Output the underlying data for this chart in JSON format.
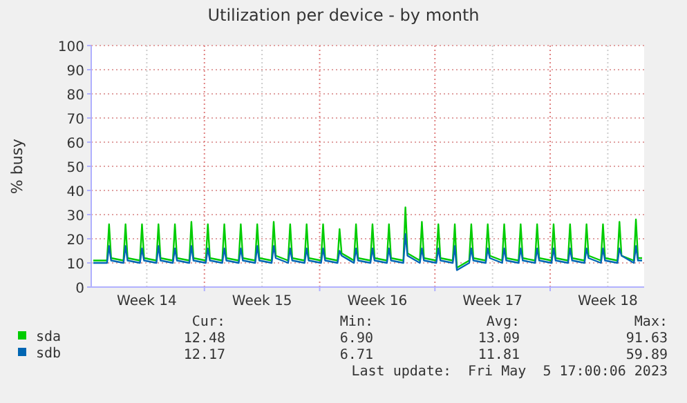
{
  "chart_data": {
    "type": "line",
    "title": "Utilization per device - by month",
    "ylabel": "% busy",
    "xlim": [
      "2023-04-03T03:00",
      "2023-05-06T17:00"
    ],
    "xticks": [
      {
        "value": "2023-04-06T12:00",
        "label": "Week 14"
      },
      {
        "value": "2023-04-10T00:00",
        "label": null
      },
      {
        "value": "2023-04-13T12:00",
        "label": "Week 15"
      },
      {
        "value": "2023-04-17T00:00",
        "label": null
      },
      {
        "value": "2023-04-20T12:00",
        "label": "Week 16"
      },
      {
        "value": "2023-04-24T00:00",
        "label": null
      },
      {
        "value": "2023-04-27T12:00",
        "label": "Week 17"
      },
      {
        "value": "2023-05-01T00:00",
        "label": null
      },
      {
        "value": "2023-05-04T12:00",
        "label": "Week 18"
      }
    ],
    "ylim": [
      0,
      100
    ],
    "yticks": [
      0,
      10,
      20,
      30,
      40,
      50,
      60,
      70,
      80,
      90,
      100
    ],
    "grid": true,
    "legend": "bottom",
    "x": [
      "2023-04-03T06:00",
      "2023-04-04T02:00",
      "2023-04-04T05:00",
      "2023-04-04T08:00",
      "2023-04-05T02:00",
      "2023-04-05T05:00",
      "2023-04-05T08:00",
      "2023-04-06T02:00",
      "2023-04-06T05:00",
      "2023-04-06T08:00",
      "2023-04-07T02:00",
      "2023-04-07T05:00",
      "2023-04-07T08:00",
      "2023-04-08T02:00",
      "2023-04-08T05:00",
      "2023-04-08T08:00",
      "2023-04-09T02:00",
      "2023-04-09T05:00",
      "2023-04-09T08:00",
      "2023-04-10T02:00",
      "2023-04-10T05:00",
      "2023-04-10T08:00",
      "2023-04-11T02:00",
      "2023-04-11T05:00",
      "2023-04-11T08:00",
      "2023-04-12T02:00",
      "2023-04-12T05:00",
      "2023-04-12T08:00",
      "2023-04-13T02:00",
      "2023-04-13T05:00",
      "2023-04-13T08:00",
      "2023-04-14T02:00",
      "2023-04-14T05:00",
      "2023-04-14T08:00",
      "2023-04-15T02:00",
      "2023-04-15T05:00",
      "2023-04-15T08:00",
      "2023-04-16T02:00",
      "2023-04-16T05:00",
      "2023-04-16T08:00",
      "2023-04-17T02:00",
      "2023-04-17T05:00",
      "2023-04-17T08:00",
      "2023-04-18T02:00",
      "2023-04-18T05:00",
      "2023-04-18T08:00",
      "2023-04-19T02:00",
      "2023-04-19T05:00",
      "2023-04-19T08:00",
      "2023-04-20T02:00",
      "2023-04-20T05:00",
      "2023-04-20T08:00",
      "2023-04-21T02:00",
      "2023-04-21T05:00",
      "2023-04-21T08:00",
      "2023-04-22T02:00",
      "2023-04-22T05:00",
      "2023-04-22T08:00",
      "2023-04-23T02:00",
      "2023-04-23T05:00",
      "2023-04-23T08:00",
      "2023-04-24T02:00",
      "2023-04-24T05:00",
      "2023-04-24T08:00",
      "2023-04-25T02:00",
      "2023-04-25T05:00",
      "2023-04-25T08:00",
      "2023-04-26T02:00",
      "2023-04-26T05:00",
      "2023-04-26T08:00",
      "2023-04-27T02:00",
      "2023-04-27T05:00",
      "2023-04-27T08:00",
      "2023-04-28T02:00",
      "2023-04-28T05:00",
      "2023-04-28T08:00",
      "2023-04-29T02:00",
      "2023-04-29T05:00",
      "2023-04-29T08:00",
      "2023-04-30T02:00",
      "2023-04-30T05:00",
      "2023-04-30T08:00",
      "2023-05-01T02:00",
      "2023-05-01T05:00",
      "2023-05-01T08:00",
      "2023-05-02T02:00",
      "2023-05-02T05:00",
      "2023-05-02T08:00",
      "2023-05-03T02:00",
      "2023-05-03T05:00",
      "2023-05-03T08:00",
      "2023-05-04T02:00",
      "2023-05-04T05:00",
      "2023-05-04T08:00",
      "2023-05-05T02:00",
      "2023-05-05T05:00",
      "2023-05-05T08:00",
      "2023-05-06T02:00",
      "2023-05-06T05:00",
      "2023-05-06T08:00",
      "2023-05-06T14:00"
    ],
    "series": [
      {
        "name": "sda",
        "color": "#00cc00",
        "values": [
          11,
          11,
          26,
          12,
          11,
          26,
          12,
          11,
          26,
          12,
          11,
          26,
          12,
          11,
          26,
          12,
          11,
          27,
          12,
          11,
          26,
          12,
          11,
          26,
          12,
          11,
          26,
          12,
          11,
          26,
          12,
          11,
          27,
          13,
          11,
          26,
          12,
          11,
          26,
          12,
          11,
          26,
          12,
          11,
          24,
          14,
          11,
          26,
          12,
          11,
          26,
          12,
          11,
          26,
          12,
          11,
          33,
          14,
          11,
          27,
          12,
          11,
          26,
          12,
          11,
          26,
          8,
          11,
          26,
          12,
          11,
          26,
          13,
          11,
          26,
          12,
          11,
          26,
          12,
          11,
          26,
          12,
          11,
          26,
          12,
          11,
          26,
          12,
          11,
          26,
          13,
          11,
          26,
          12,
          11,
          27,
          13,
          11,
          28,
          12,
          12
        ]
      },
      {
        "name": "sdb",
        "color": "#0066b3",
        "values": [
          10,
          10,
          17,
          11,
          10,
          17,
          11,
          10,
          16,
          11,
          10,
          17,
          11,
          10,
          16,
          11,
          10,
          17,
          11,
          10,
          16,
          11,
          10,
          16,
          11,
          10,
          16,
          11,
          10,
          17,
          11,
          10,
          17,
          12,
          10,
          16,
          11,
          10,
          16,
          11,
          10,
          16,
          11,
          10,
          15,
          13,
          10,
          16,
          11,
          10,
          16,
          11,
          10,
          16,
          11,
          10,
          22,
          13,
          10,
          16,
          11,
          10,
          16,
          11,
          10,
          17,
          7,
          10,
          16,
          11,
          10,
          16,
          12,
          10,
          16,
          11,
          10,
          16,
          11,
          10,
          16,
          11,
          10,
          16,
          11,
          10,
          16,
          11,
          10,
          16,
          12,
          10,
          16,
          11,
          10,
          16,
          13,
          10,
          17,
          11,
          11
        ]
      }
    ],
    "annotations": [
      "Cur:",
      "Min:",
      "Avg:",
      "Max:",
      "12.48",
      "6.90",
      "13.09",
      "91.63",
      "12.17",
      "6.71",
      "11.81",
      "59.89",
      "Last update:  Fri May  5 17:00:06 2023"
    ]
  }
}
